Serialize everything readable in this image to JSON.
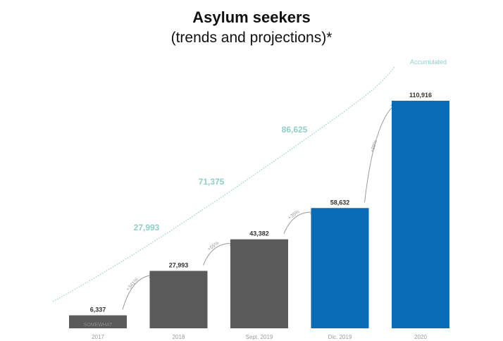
{
  "chart_data": {
    "type": "bar",
    "title": "Asylum seekers",
    "subtitle": "(trends and projections)*",
    "categories": [
      "2017",
      "2018",
      "Sept. 2019",
      "Dic. 2019",
      "2020"
    ],
    "values": [
      6337,
      27993,
      43382,
      58632,
      110916
    ],
    "value_labels": [
      "6,337",
      "27,993",
      "43,382",
      "58,632",
      "110,916"
    ],
    "bar_colors": [
      "#5a5a5a",
      "#5a5a5a",
      "#5a5a5a",
      "#0a6bb6",
      "#0a6bb6"
    ],
    "bar_inner_labels": [
      "SOMEWHAT",
      "",
      "",
      "",
      ""
    ],
    "growth_labels": [
      "+341%",
      "+55%",
      "+35%",
      "+89%"
    ],
    "accumulated": {
      "label": "Accumulated",
      "values": [
        27993,
        71375,
        86625
      ],
      "value_labels": [
        "27,993",
        "71,375",
        "86,625"
      ],
      "color": "#8fcfc9"
    },
    "ylim": [
      0,
      110916
    ],
    "grid": false,
    "legend": "none"
  }
}
